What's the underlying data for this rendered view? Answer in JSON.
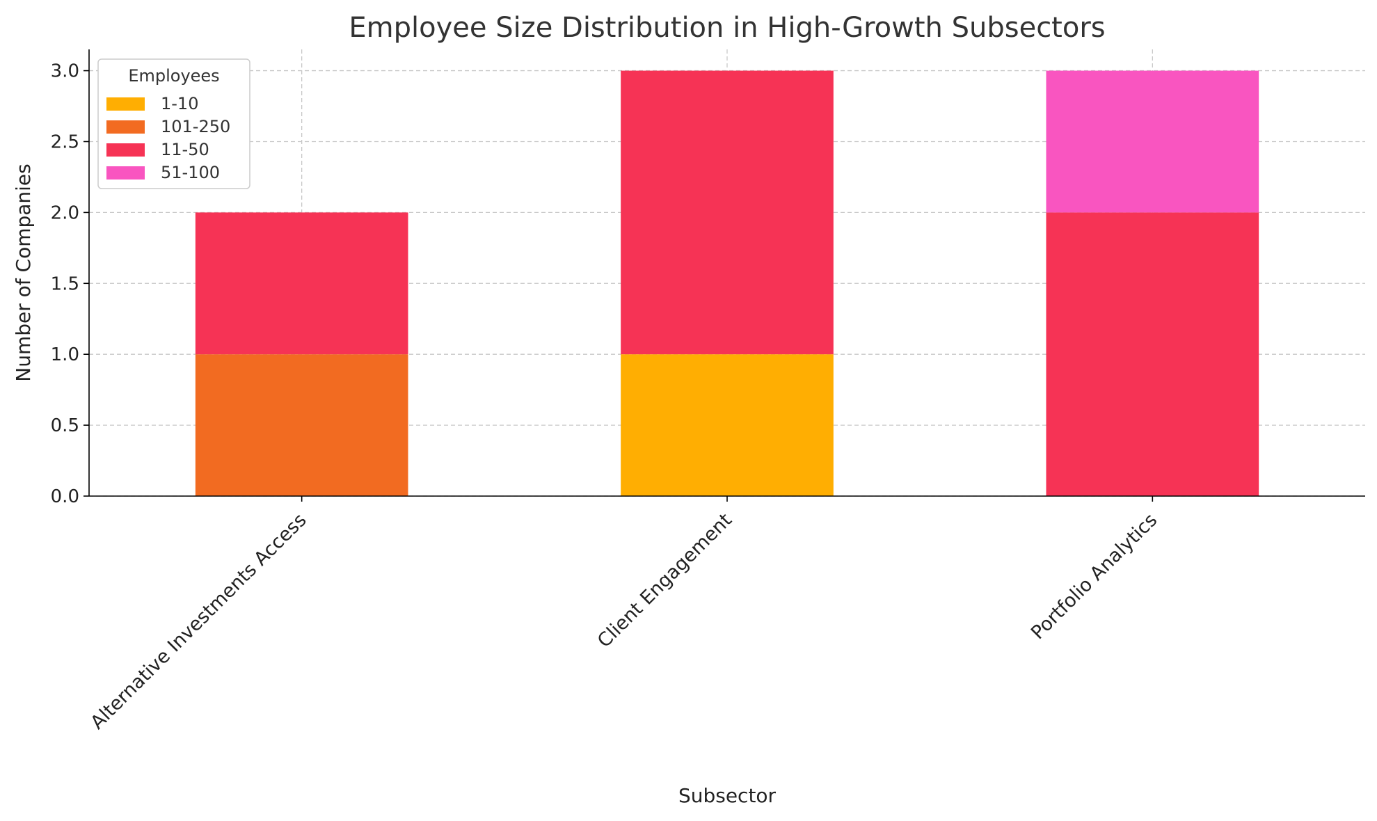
{
  "chart_data": {
    "type": "bar",
    "stacked": true,
    "title": "Employee Size Distribution in High-Growth Subsectors",
    "xlabel": "Subsector",
    "ylabel": "Number of Companies",
    "categories": [
      "Alternative Investments Access",
      "Client Engagement",
      "Portfolio Analytics"
    ],
    "series": [
      {
        "name": "1-10",
        "color": "#FFAE02",
        "values": [
          0,
          1,
          0
        ]
      },
      {
        "name": "101-250",
        "color": "#F26B21",
        "values": [
          1,
          0,
          0
        ]
      },
      {
        "name": "11-50",
        "color": "#F63355",
        "values": [
          1,
          2,
          2
        ]
      },
      {
        "name": "51-100",
        "color": "#F955C0",
        "values": [
          0,
          0,
          1
        ]
      }
    ],
    "ylim": [
      0,
      3.15
    ],
    "yticks": [
      "0.0",
      "0.5",
      "1.0",
      "1.5",
      "2.0",
      "2.5",
      "3.0"
    ],
    "grid": true,
    "legend_title": "Employees",
    "legend_position": "top-left"
  }
}
